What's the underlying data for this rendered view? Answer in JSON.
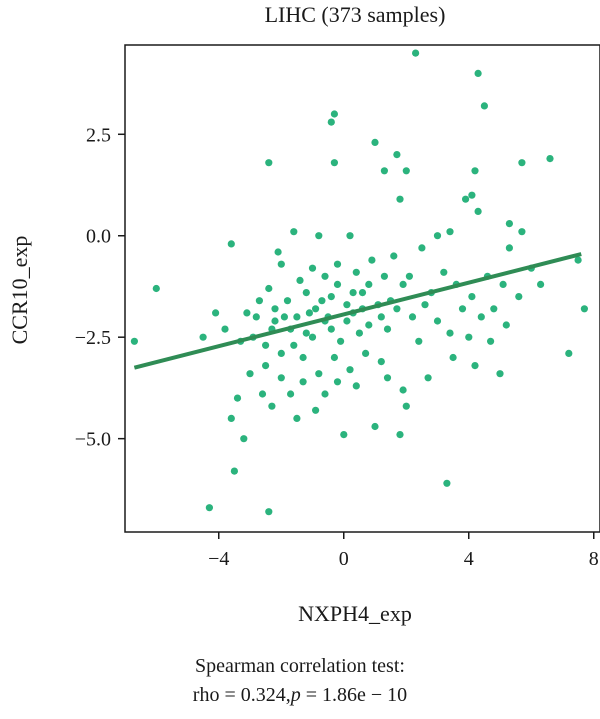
{
  "chart_data": {
    "type": "scatter",
    "title": "LIHC (373 samples)",
    "xlabel": "NXPH4_exp",
    "ylabel": "CCR10_exp",
    "xlim": [
      -7,
      8.2
    ],
    "ylim": [
      -7.3,
      4.7
    ],
    "x_ticks": [
      -4,
      0,
      4,
      8
    ],
    "y_ticks": [
      -5.0,
      -2.5,
      0.0,
      2.5
    ],
    "x_tick_labels": [
      "−4",
      "0",
      "4",
      "8"
    ],
    "y_tick_labels": [
      "−5.0",
      "−2.5",
      "0.0",
      "2.5"
    ],
    "grid": false,
    "point_color": "#2bb37d",
    "line_color": "#2f8c55",
    "regression_line": {
      "x": [
        -6.7,
        7.6
      ],
      "y": [
        -3.25,
        -0.45
      ]
    },
    "points": [
      [
        2.3,
        4.5
      ],
      [
        4.3,
        4.0
      ],
      [
        4.5,
        3.2
      ],
      [
        -0.4,
        2.8
      ],
      [
        -0.3,
        3.0
      ],
      [
        6.6,
        1.9
      ],
      [
        5.7,
        1.8
      ],
      [
        -2.4,
        1.8
      ],
      [
        -0.3,
        1.8
      ],
      [
        1.0,
        2.3
      ],
      [
        1.3,
        1.6
      ],
      [
        1.7,
        2.0
      ],
      [
        2.0,
        1.6
      ],
      [
        4.2,
        1.6
      ],
      [
        1.8,
        0.9
      ],
      [
        3.9,
        0.9
      ],
      [
        4.1,
        1.0
      ],
      [
        4.3,
        0.6
      ],
      [
        5.3,
        0.3
      ],
      [
        5.7,
        0.1
      ],
      [
        3.0,
        0.0
      ],
      [
        3.4,
        0.1
      ],
      [
        -0.8,
        0.0
      ],
      [
        -1.6,
        0.1
      ],
      [
        0.2,
        0.0
      ],
      [
        -6.0,
        -1.3
      ],
      [
        -6.7,
        -2.6
      ],
      [
        -4.5,
        -2.5
      ],
      [
        -4.1,
        -1.9
      ],
      [
        -2.1,
        -0.4
      ],
      [
        -2.0,
        -0.7
      ],
      [
        -3.6,
        -0.2
      ],
      [
        -2.3,
        -2.3
      ],
      [
        -1.8,
        -1.6
      ],
      [
        -1.5,
        -2.0
      ],
      [
        -1.2,
        -2.4
      ],
      [
        -0.9,
        -1.8
      ],
      [
        -0.6,
        -2.1
      ],
      [
        -0.4,
        -1.5
      ],
      [
        -0.1,
        -2.6
      ],
      [
        0.3,
        -1.9
      ],
      [
        0.6,
        -1.4
      ],
      [
        0.8,
        -2.2
      ],
      [
        1.1,
        -1.7
      ],
      [
        1.4,
        -2.3
      ],
      [
        -2.8,
        -2.0
      ],
      [
        -3.1,
        -1.9
      ],
      [
        -2.5,
        -2.7
      ],
      [
        -2.0,
        -2.9
      ],
      [
        -1.3,
        -3.0
      ],
      [
        -0.8,
        -3.4
      ],
      [
        -0.3,
        -3.0
      ],
      [
        0.2,
        -3.3
      ],
      [
        0.7,
        -2.9
      ],
      [
        1.2,
        -3.1
      ],
      [
        -3.0,
        -3.4
      ],
      [
        -2.6,
        -3.9
      ],
      [
        -3.4,
        -4.0
      ],
      [
        -3.6,
        -4.5
      ],
      [
        -3.2,
        -5.0
      ],
      [
        -3.5,
        -5.8
      ],
      [
        -4.3,
        -6.7
      ],
      [
        -2.4,
        -6.8
      ],
      [
        -1.5,
        -4.5
      ],
      [
        -0.9,
        -4.3
      ],
      [
        0.0,
        -4.9
      ],
      [
        1.0,
        -4.7
      ],
      [
        1.8,
        -4.9
      ],
      [
        2.0,
        -4.2
      ],
      [
        3.3,
        -6.1
      ],
      [
        2.7,
        -3.5
      ],
      [
        3.5,
        -3.0
      ],
      [
        4.0,
        -2.5
      ],
      [
        4.4,
        -2.0
      ],
      [
        4.8,
        -1.8
      ],
      [
        5.2,
        -2.2
      ],
      [
        5.6,
        -1.5
      ],
      [
        6.0,
        -0.8
      ],
      [
        6.3,
        -1.2
      ],
      [
        7.2,
        -2.9
      ],
      [
        7.5,
        -0.6
      ],
      [
        7.7,
        -1.8
      ],
      [
        5.0,
        -3.4
      ],
      [
        4.2,
        -3.2
      ],
      [
        2.4,
        -2.6
      ],
      [
        2.8,
        -1.4
      ],
      [
        3.2,
        -0.9
      ],
      [
        3.6,
        -1.2
      ],
      [
        4.6,
        -1.0
      ],
      [
        5.3,
        -0.3
      ],
      [
        1.6,
        -0.5
      ],
      [
        2.1,
        -1.0
      ],
      [
        2.5,
        -0.3
      ],
      [
        0.9,
        -0.6
      ],
      [
        0.4,
        -0.9
      ],
      [
        -0.2,
        -0.7
      ],
      [
        -0.6,
        -1.0
      ],
      [
        -1.0,
        -0.8
      ],
      [
        -1.4,
        -1.1
      ],
      [
        -2.4,
        -1.3
      ],
      [
        -1.7,
        -2.3
      ],
      [
        -1.1,
        -1.9
      ],
      [
        -0.5,
        -2.0
      ],
      [
        0.1,
        -1.7
      ],
      [
        0.5,
        -2.4
      ],
      [
        1.5,
        -1.6
      ],
      [
        1.9,
        -1.2
      ],
      [
        2.2,
        -2.0
      ],
      [
        2.6,
        -1.7
      ],
      [
        3.0,
        -2.1
      ],
      [
        -3.8,
        -2.3
      ],
      [
        -3.3,
        -2.6
      ],
      [
        -2.9,
        -2.5
      ],
      [
        -2.2,
        -2.1
      ],
      [
        -1.6,
        -2.7
      ],
      [
        -1.0,
        -2.5
      ],
      [
        -0.4,
        -2.3
      ],
      [
        0.1,
        -2.1
      ],
      [
        0.6,
        -1.8
      ],
      [
        1.2,
        -2.0
      ],
      [
        -2.7,
        -1.6
      ],
      [
        -2.2,
        -1.8
      ],
      [
        -1.9,
        -2.0
      ],
      [
        -1.2,
        -1.4
      ],
      [
        -0.7,
        -1.6
      ],
      [
        -0.2,
        -1.2
      ],
      [
        0.3,
        -1.4
      ],
      [
        0.8,
        -1.2
      ],
      [
        1.3,
        -1.0
      ],
      [
        1.7,
        -1.8
      ],
      [
        3.4,
        -2.4
      ],
      [
        3.8,
        -1.8
      ],
      [
        4.1,
        -1.5
      ],
      [
        4.7,
        -2.6
      ],
      [
        5.1,
        -1.2
      ],
      [
        -1.3,
        -3.6
      ],
      [
        -0.6,
        -3.9
      ],
      [
        0.4,
        -3.7
      ],
      [
        1.4,
        -3.5
      ],
      [
        1.9,
        -3.8
      ],
      [
        -2.0,
        -3.5
      ],
      [
        -2.5,
        -3.2
      ],
      [
        -1.7,
        -3.9
      ],
      [
        -2.3,
        -4.2
      ],
      [
        -0.2,
        -3.6
      ]
    ]
  },
  "stats": {
    "line1": "Spearman correlation test:",
    "line2_prefix": "rho = 0.324,",
    "line2_p": "p",
    "line2_suffix": " = 1.86e − 10"
  }
}
